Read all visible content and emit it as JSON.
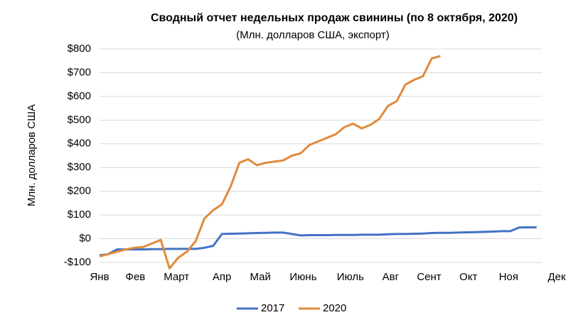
{
  "chart_data": {
    "type": "line",
    "title": "Сводный отчет недельных продаж свинины (по 8 октября, 2020)",
    "subtitle": "(Млн. долларов США, экспорт)",
    "ylabel": "Млн. долларов США",
    "x": [
      0,
      1,
      2,
      3,
      4,
      5,
      6,
      7,
      8,
      9,
      10,
      11,
      12,
      13,
      14,
      15,
      16,
      17,
      18,
      19,
      20,
      21,
      22,
      23,
      24,
      25,
      26,
      27,
      28,
      29,
      30,
      31,
      32,
      33,
      34,
      35,
      36,
      37,
      38,
      39,
      40,
      41,
      42,
      43,
      44,
      45,
      46,
      47,
      48,
      49,
      50
    ],
    "series": [
      {
        "name": "2017",
        "color": "#4472c4",
        "values": [
          -70,
          -65,
          -45,
          -45,
          -45,
          -45,
          -44,
          -44,
          -43,
          -43,
          -43,
          -43,
          -38,
          -30,
          20,
          21,
          22,
          23,
          24,
          25,
          26,
          26,
          20,
          14,
          15,
          15,
          15,
          16,
          16,
          16,
          17,
          17,
          17,
          19,
          20,
          20,
          21,
          22,
          24,
          25,
          25,
          26,
          27,
          28,
          29,
          30,
          32,
          32,
          47,
          48,
          48
        ]
      },
      {
        "name": "2020",
        "color": "#e08a3c",
        "values": [
          -75,
          -65,
          -55,
          -45,
          -38,
          -35,
          -20,
          -5,
          -125,
          -80,
          -55,
          -10,
          85,
          120,
          145,
          220,
          320,
          335,
          310,
          320,
          325,
          330,
          350,
          360,
          395,
          410,
          425,
          440,
          470,
          485,
          465,
          480,
          505,
          560,
          580,
          650,
          670,
          685,
          760,
          770,
          null,
          null,
          null,
          null,
          null,
          null,
          null,
          null,
          null,
          null,
          null
        ]
      }
    ],
    "xlim": [
      0,
      52.3
    ],
    "xticks": [
      {
        "value": 0,
        "label": "Янв"
      },
      {
        "value": 4.1,
        "label": "Фев"
      },
      {
        "value": 8.8,
        "label": "Март"
      },
      {
        "value": 14,
        "label": "Апр"
      },
      {
        "value": 18.4,
        "label": "Май"
      },
      {
        "value": 23.3,
        "label": "Июнь"
      },
      {
        "value": 28.7,
        "label": "Июль"
      },
      {
        "value": 33.3,
        "label": "Авг"
      },
      {
        "value": 37.7,
        "label": "Сент"
      },
      {
        "value": 42.2,
        "label": "Окт"
      },
      {
        "value": 46.8,
        "label": "Ноя"
      },
      {
        "value": 52.3,
        "label": "Дек"
      }
    ],
    "ylim": [
      -100,
      800
    ],
    "yticks": [
      {
        "value": -100,
        "label": "-$100"
      },
      {
        "value": 0,
        "label": "$0"
      },
      {
        "value": 100,
        "label": "$100"
      },
      {
        "value": 200,
        "label": "$200"
      },
      {
        "value": 300,
        "label": "$300"
      },
      {
        "value": 400,
        "label": "$400"
      },
      {
        "value": 500,
        "label": "$500"
      },
      {
        "value": 600,
        "label": "$600"
      },
      {
        "value": 700,
        "label": "$700"
      },
      {
        "value": 800,
        "label": "$800"
      }
    ],
    "grid": true,
    "legend": "bottom"
  }
}
